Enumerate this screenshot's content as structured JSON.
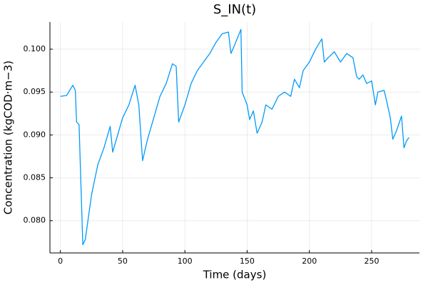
{
  "chart_data": {
    "type": "line",
    "title": "S_IN(t)",
    "x_label": "Time (days)",
    "y_label": "Concentration (kgCOD·m−3)",
    "x": [
      0,
      5,
      10,
      12,
      13,
      15,
      18,
      20,
      25,
      30,
      35,
      40,
      42,
      45,
      50,
      55,
      60,
      63,
      66,
      70,
      75,
      80,
      85,
      90,
      93,
      95,
      100,
      105,
      110,
      115,
      120,
      125,
      130,
      135,
      137,
      140,
      145,
      146,
      150,
      152,
      155,
      158,
      162,
      165,
      170,
      175,
      180,
      185,
      188,
      192,
      195,
      200,
      205,
      210,
      212,
      215,
      220,
      225,
      230,
      235,
      238,
      240,
      243,
      246,
      250,
      253,
      255,
      260,
      262,
      265,
      267,
      270,
      274,
      276,
      278,
      280
    ],
    "series": [
      {
        "name": "S_IN",
        "color": "#009af9",
        "values": [
          0.0945,
          0.0946,
          0.0958,
          0.0952,
          0.0915,
          0.0912,
          0.0772,
          0.0778,
          0.083,
          0.0865,
          0.0885,
          0.091,
          0.088,
          0.0895,
          0.092,
          0.0935,
          0.0958,
          0.0935,
          0.087,
          0.0895,
          0.092,
          0.0945,
          0.096,
          0.0983,
          0.098,
          0.0915,
          0.0935,
          0.096,
          0.0975,
          0.0985,
          0.0995,
          0.1008,
          0.1018,
          0.102,
          0.0995,
          0.1005,
          0.1023,
          0.095,
          0.0935,
          0.0918,
          0.0928,
          0.0902,
          0.0915,
          0.0935,
          0.093,
          0.0945,
          0.095,
          0.0945,
          0.0965,
          0.0955,
          0.0975,
          0.0985,
          0.1,
          0.1012,
          0.0985,
          0.099,
          0.0997,
          0.0985,
          0.0995,
          0.099,
          0.0968,
          0.0965,
          0.097,
          0.096,
          0.0963,
          0.0935,
          0.095,
          0.0952,
          0.094,
          0.092,
          0.0895,
          0.0905,
          0.0922,
          0.0885,
          0.0893,
          0.0897
        ]
      }
    ],
    "xlim": [
      -8.4,
      288.4
    ],
    "ylim": [
      0.07624,
      0.10316
    ],
    "xticks": [
      0,
      50,
      100,
      150,
      200,
      250
    ],
    "yticks": [
      {
        "value": 0.08,
        "label": "0.080"
      },
      {
        "value": 0.085,
        "label": "0.085"
      },
      {
        "value": 0.09,
        "label": "0.090"
      },
      {
        "value": 0.095,
        "label": "0.095"
      },
      {
        "value": 0.1,
        "label": "0.100"
      }
    ],
    "grid": true
  }
}
